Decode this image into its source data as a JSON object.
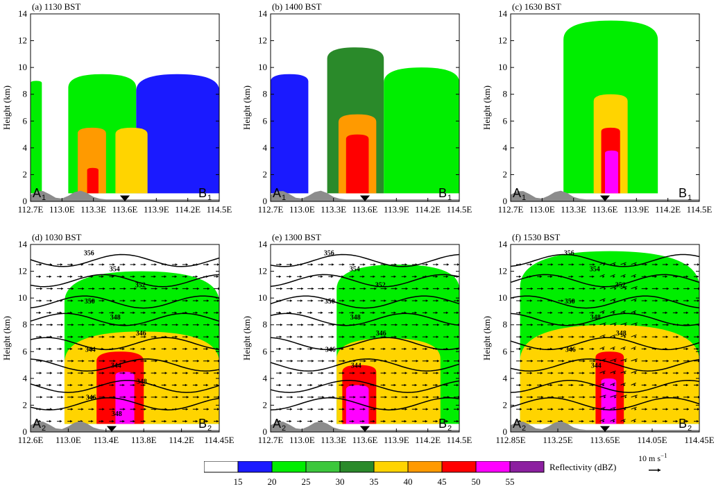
{
  "figure": {
    "ylabel": "Height (km)",
    "yticks": [
      "0",
      "2",
      "4",
      "6",
      "8",
      "10",
      "12",
      "14"
    ],
    "ylim": [
      0,
      14
    ]
  },
  "colors": {
    "levels": [
      "#ffffff",
      "#1a1aff",
      "#00ee00",
      "#3cc83c",
      "#2a8a2a",
      "#ffd400",
      "#ff9a00",
      "#ff0000",
      "#ff00ff",
      "#8c1fa0"
    ],
    "contour": "#000000",
    "terrain": "#8c8c8c"
  },
  "legend": {
    "title": "Reflectivity (dBZ)",
    "ticks": [
      "15",
      "20",
      "25",
      "30",
      "35",
      "40",
      "45",
      "50",
      "55"
    ]
  },
  "wind_scale": {
    "label": "10 m s",
    "superscript": "−1"
  },
  "chart_data": [
    {
      "type": "heatmap",
      "title": "(a) 1130 BST",
      "xticks": [
        "112.7E",
        "113.0E",
        "113.3E",
        "113.6E",
        "113.9E",
        "114.2E",
        "114.5E"
      ],
      "endpoints": {
        "start": "A",
        "end": "B",
        "subscript": "1"
      },
      "marker_x_fraction": 0.5,
      "cells": [
        {
          "x": [
            0.0,
            0.06
          ],
          "level": 2,
          "top": 9.0
        },
        {
          "x": [
            0.2,
            0.56
          ],
          "level": 2,
          "top": 9.5
        },
        {
          "x": [
            0.56,
            1.0
          ],
          "level": 1,
          "top": 9.5
        },
        {
          "x": [
            0.25,
            0.4
          ],
          "level": 6,
          "top": 5.5
        },
        {
          "x": [
            0.45,
            0.62
          ],
          "level": 5,
          "top": 5.5
        },
        {
          "x": [
            0.3,
            0.36
          ],
          "level": 7,
          "top": 2.5
        }
      ]
    },
    {
      "type": "heatmap",
      "title": "(b) 1400 BST",
      "xticks": [
        "112.7E",
        "113.0E",
        "113.3E",
        "113.6E",
        "113.9E",
        "114.2E",
        "114.5E"
      ],
      "endpoints": {
        "start": "A",
        "end": "B",
        "subscript": "1"
      },
      "marker_x_fraction": 0.5,
      "cells": [
        {
          "x": [
            0.0,
            0.2
          ],
          "level": 1,
          "top": 9.5
        },
        {
          "x": [
            0.3,
            0.6
          ],
          "level": 4,
          "top": 11.5
        },
        {
          "x": [
            0.6,
            1.0
          ],
          "level": 2,
          "top": 10.0
        },
        {
          "x": [
            0.36,
            0.56
          ],
          "level": 6,
          "top": 6.5
        },
        {
          "x": [
            0.4,
            0.52
          ],
          "level": 7,
          "top": 5.0
        }
      ]
    },
    {
      "type": "heatmap",
      "title": "(c) 1630 BST",
      "xticks": [
        "112.7E",
        "113.0E",
        "113.3E",
        "113.6E",
        "113.9E",
        "114.2E",
        "114.5E"
      ],
      "endpoints": {
        "start": "A",
        "end": "B",
        "subscript": "1"
      },
      "marker_x_fraction": 0.5,
      "cells": [
        {
          "x": [
            0.28,
            0.78
          ],
          "level": 2,
          "top": 13.5
        },
        {
          "x": [
            0.44,
            0.62
          ],
          "level": 5,
          "top": 8.0
        },
        {
          "x": [
            0.48,
            0.58
          ],
          "level": 7,
          "top": 5.5
        },
        {
          "x": [
            0.5,
            0.57
          ],
          "level": 8,
          "top": 3.8
        }
      ]
    },
    {
      "type": "heatmap",
      "title": "(d) 1030 BST",
      "xticks": [
        "112.6E",
        "113.0E",
        "113.4E",
        "113.8E",
        "114.2E",
        "114.45E"
      ],
      "endpoints": {
        "start": "A",
        "end": "B",
        "subscript": "2"
      },
      "marker_x_fraction": 0.43,
      "contour_labels": [
        "356",
        "354",
        "352",
        "350",
        "348",
        "346",
        "344",
        "344",
        "348",
        "346",
        "348"
      ],
      "cells": [
        {
          "x": [
            0.18,
            1.0
          ],
          "level": 2,
          "top": 12.0
        },
        {
          "x": [
            0.18,
            1.0
          ],
          "level": 5,
          "top": 7.5
        },
        {
          "x": [
            0.35,
            0.6
          ],
          "level": 7,
          "top": 6.0
        },
        {
          "x": [
            0.45,
            0.55
          ],
          "level": 8,
          "top": 4.5
        }
      ]
    },
    {
      "type": "heatmap",
      "title": "(e) 1300 BST",
      "xticks": [
        "112.7E",
        "113.0E",
        "113.3E",
        "113.6E",
        "113.9E",
        "114.2E",
        "114.5E"
      ],
      "endpoints": {
        "start": "A",
        "end": "B",
        "subscript": "2"
      },
      "marker_x_fraction": 0.5,
      "contour_labels": [
        "356",
        "354",
        "352",
        "350",
        "348",
        "346",
        "346",
        "344"
      ],
      "cells": [
        {
          "x": [
            0.35,
            1.0
          ],
          "level": 2,
          "top": 12.5
        },
        {
          "x": [
            0.35,
            0.9
          ],
          "level": 5,
          "top": 7.0
        },
        {
          "x": [
            0.38,
            0.56
          ],
          "level": 7,
          "top": 5.0
        },
        {
          "x": [
            0.4,
            0.52
          ],
          "level": 8,
          "top": 3.5
        }
      ]
    },
    {
      "type": "heatmap",
      "title": "(f) 1530 BST",
      "xticks": [
        "112.85E",
        "113.25E",
        "113.65E",
        "114.05E",
        "114.45E"
      ],
      "endpoints": {
        "start": "A",
        "end": "B",
        "subscript": "2"
      },
      "marker_x_fraction": 0.5,
      "contour_labels": [
        "356",
        "354",
        "352",
        "350",
        "348",
        "348",
        "346",
        "344"
      ],
      "cells": [
        {
          "x": [
            0.05,
            1.0
          ],
          "level": 2,
          "top": 13.5
        },
        {
          "x": [
            0.05,
            1.0
          ],
          "level": 5,
          "top": 8.0
        },
        {
          "x": [
            0.45,
            0.6
          ],
          "level": 7,
          "top": 6.0
        },
        {
          "x": [
            0.48,
            0.56
          ],
          "level": 8,
          "top": 4.0
        }
      ]
    }
  ]
}
